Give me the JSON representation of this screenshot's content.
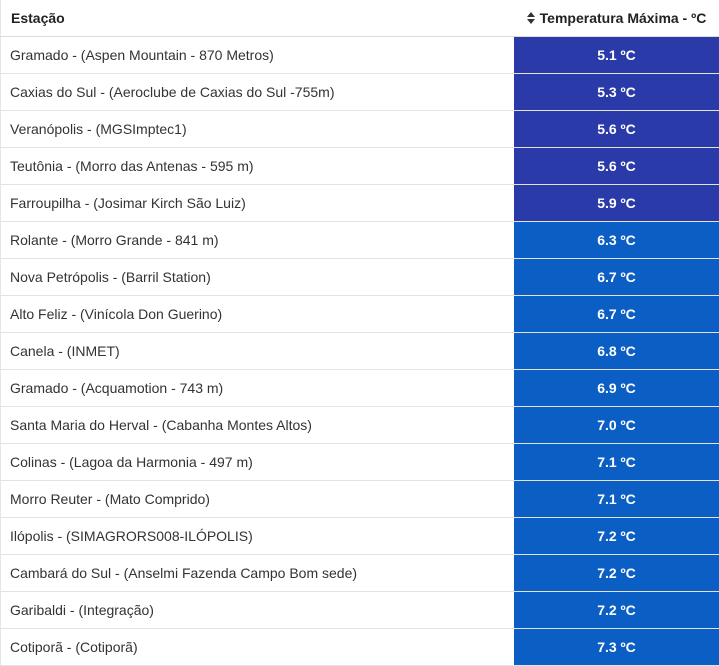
{
  "header": {
    "station_label": "Estação",
    "temp_label": "Temperatura Máxima - ºC",
    "sort_icon": "sort-icon"
  },
  "colors": {
    "cold": "#2a3aa8",
    "cool": "#0b5fc4",
    "border": "#e3e3e3"
  },
  "rows": [
    {
      "station": "Gramado - (Aspen Mountain - 870 Metros)",
      "temp": "5.1 ºC",
      "band": "cold"
    },
    {
      "station": "Caxias do Sul - (Aeroclube de Caxias do Sul -755m)",
      "temp": "5.3 ºC",
      "band": "cold"
    },
    {
      "station": "Veranópolis - (MGSImptec1)",
      "temp": "5.6 ºC",
      "band": "cold"
    },
    {
      "station": "Teutônia - (Morro das Antenas - 595 m)",
      "temp": "5.6 ºC",
      "band": "cold"
    },
    {
      "station": "Farroupilha - (Josimar Kirch São Luiz)",
      "temp": "5.9 ºC",
      "band": "cold"
    },
    {
      "station": "Rolante - (Morro Grande - 841 m)",
      "temp": "6.3 ºC",
      "band": "cool"
    },
    {
      "station": "Nova Petrópolis - (Barril Station)",
      "temp": "6.7 ºC",
      "band": "cool"
    },
    {
      "station": "Alto Feliz - (Vinícola Don Guerino)",
      "temp": "6.7 ºC",
      "band": "cool"
    },
    {
      "station": "Canela - (INMET)",
      "temp": "6.8 ºC",
      "band": "cool"
    },
    {
      "station": "Gramado - (Acquamotion - 743 m)",
      "temp": "6.9 ºC",
      "band": "cool"
    },
    {
      "station": "Santa Maria do Herval - (Cabanha Montes Altos)",
      "temp": "7.0 ºC",
      "band": "cool"
    },
    {
      "station": "Colinas - (Lagoa da Harmonia - 497 m)",
      "temp": "7.1 ºC",
      "band": "cool"
    },
    {
      "station": "Morro Reuter - (Mato Comprido)",
      "temp": "7.1 ºC",
      "band": "cool"
    },
    {
      "station": "Ilópolis - (SIMAGRORS008-ILÓPOLIS)",
      "temp": "7.2 ºC",
      "band": "cool"
    },
    {
      "station": "Cambará do Sul - (Anselmi Fazenda Campo Bom sede)",
      "temp": "7.2 ºC",
      "band": "cool"
    },
    {
      "station": "Garibaldi - (Integração)",
      "temp": "7.2 ºC",
      "band": "cool"
    },
    {
      "station": "Cotiporã - (Cotiporã)",
      "temp": "7.3 ºC",
      "band": "cool"
    }
  ]
}
